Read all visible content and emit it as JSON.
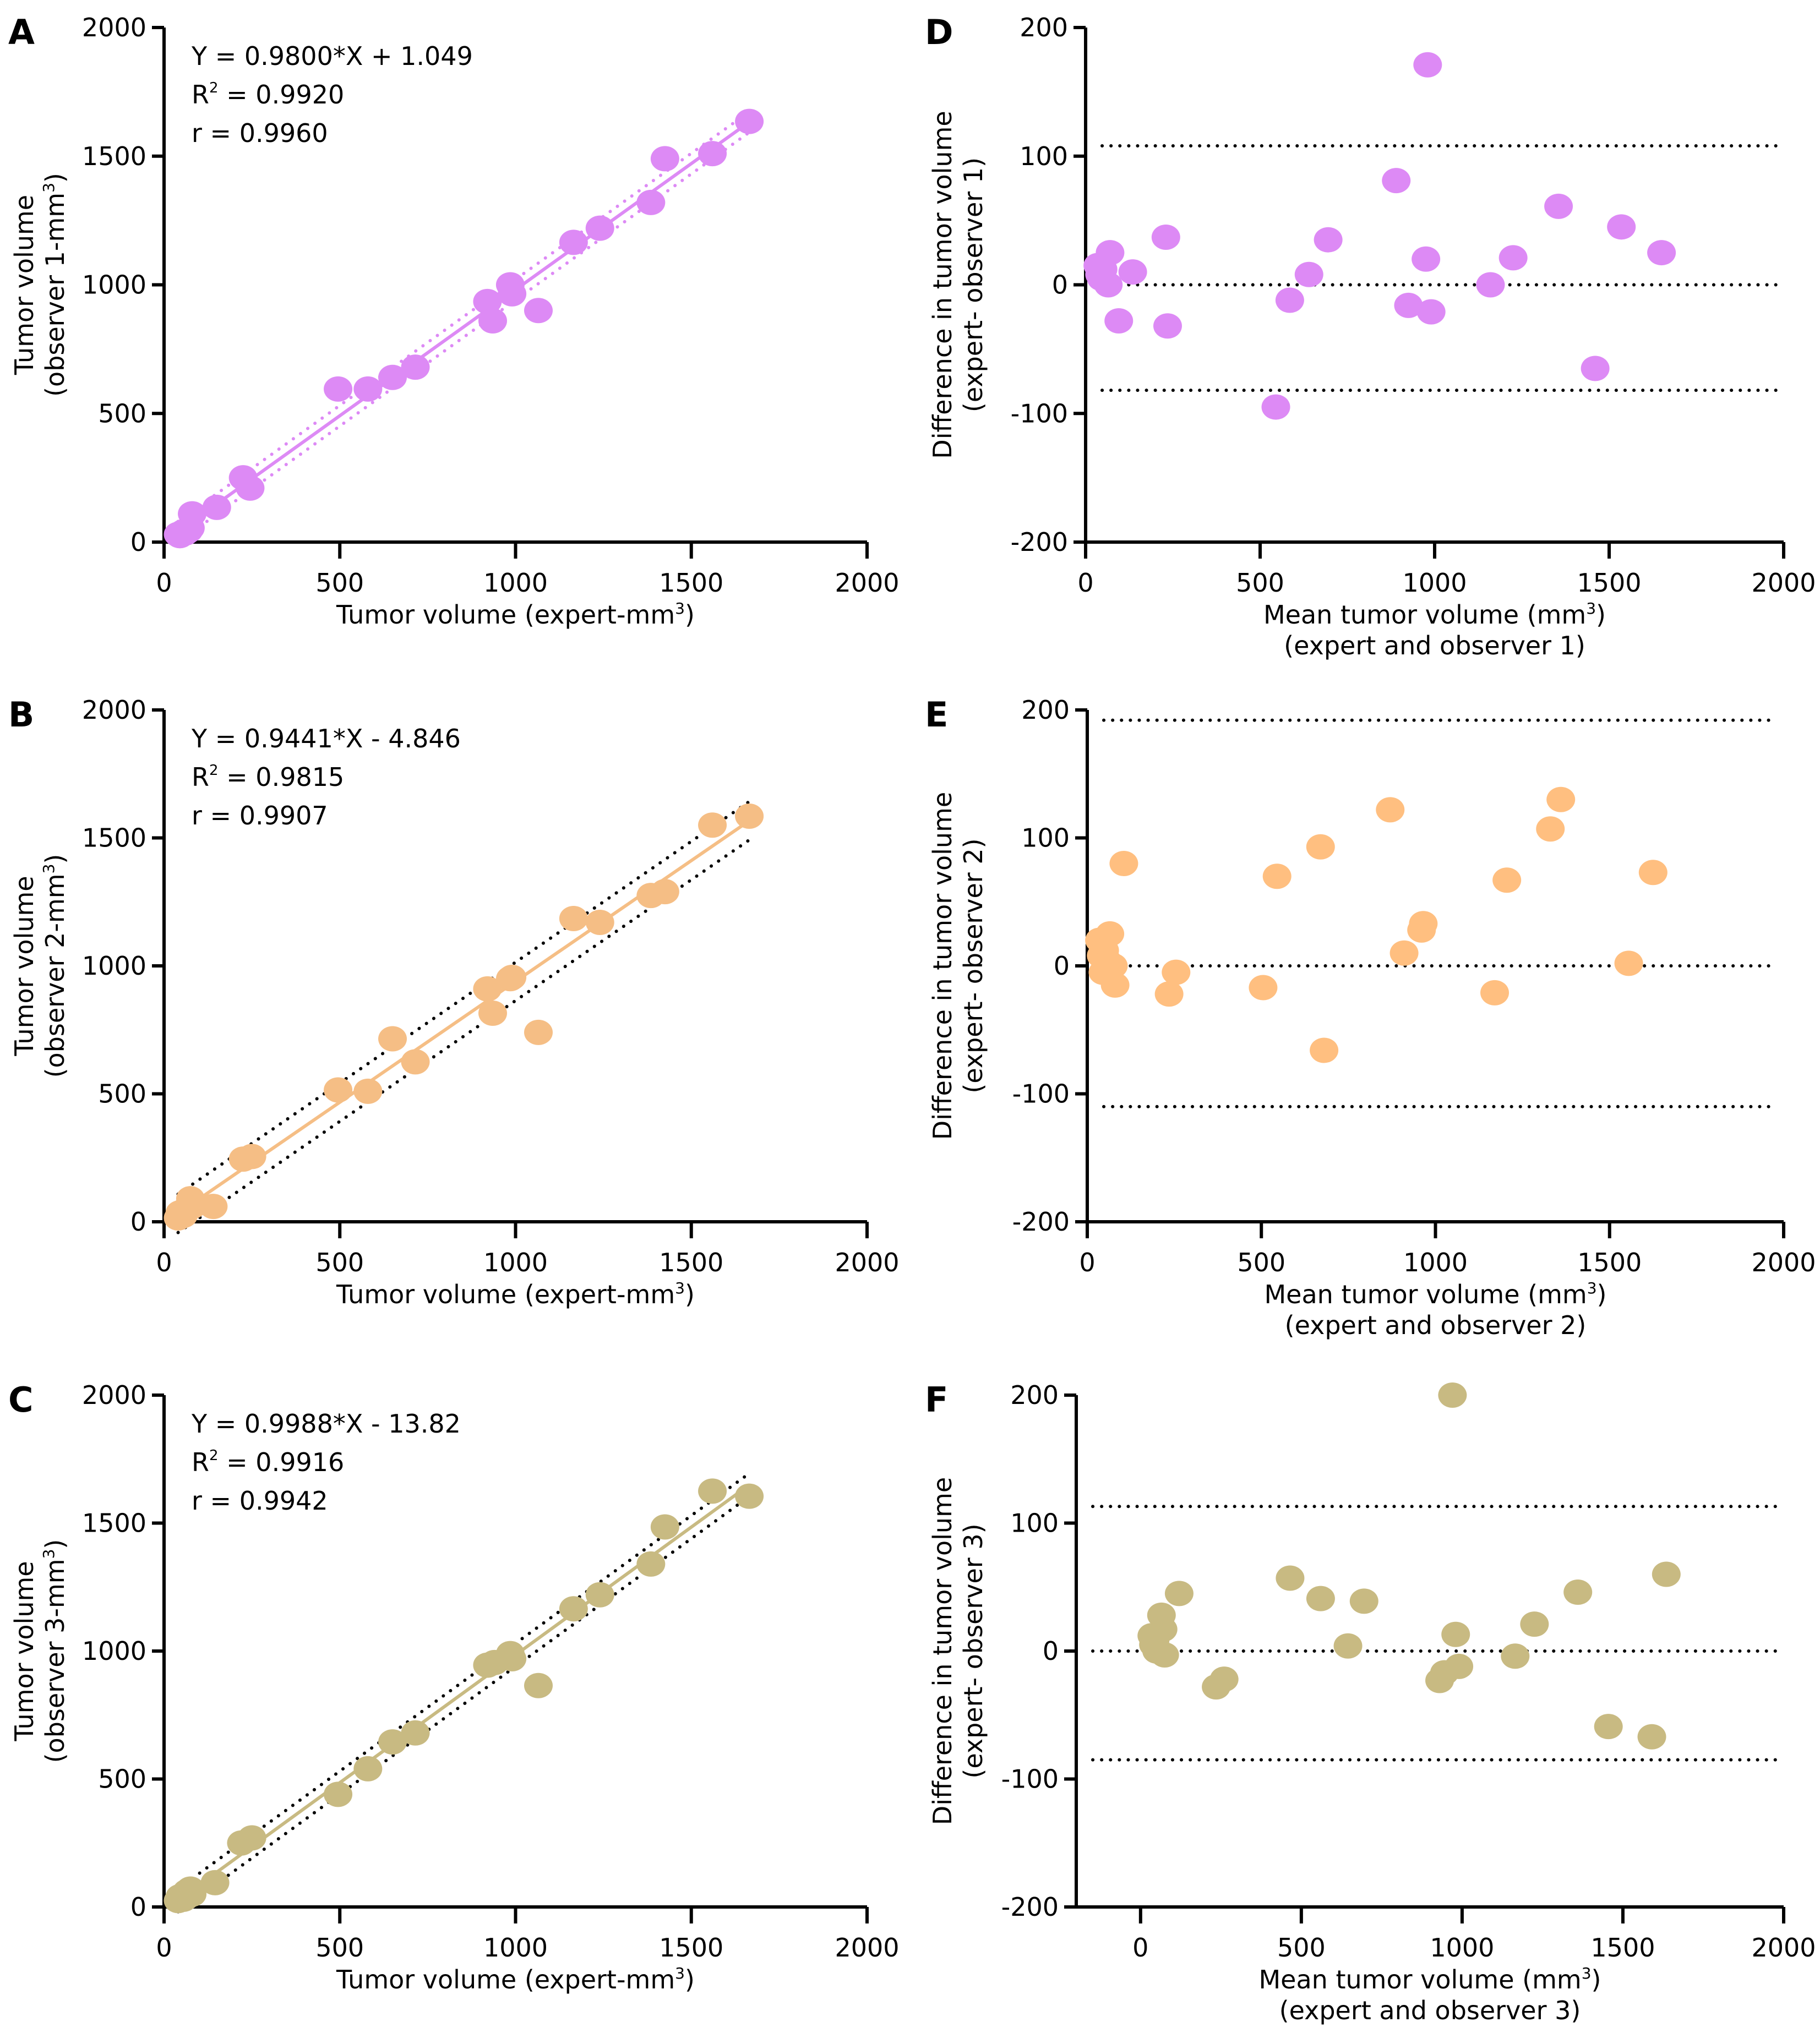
{
  "chart_data": [
    {
      "id": "A",
      "type": "scatter",
      "panel_label": "A",
      "color": "#DD8AF5",
      "ci_color": "#DD8AF5",
      "xlabel": "Tumor volume (expert-mm",
      "xlabel_sup": "3",
      "xlabel_end": ")",
      "ylabel_line1": "Tumor volume",
      "ylabel_line2": "(observer 1-mm",
      "ylabel_sup": "3",
      "ylabel_end": ")",
      "xlim": [
        0,
        2000
      ],
      "ylim": [
        0,
        2000
      ],
      "xticks": [
        0,
        500,
        1000,
        1500,
        2000
      ],
      "yticks": [
        0,
        500,
        1000,
        1500,
        2000
      ],
      "annotations": [
        "Y = 0.9800*X + 1.049",
        "R",
        "= 0.9920",
        "r = 0.9960"
      ],
      "regression": {
        "slope": 0.98,
        "intercept": 1.049,
        "x_range": [
          40,
          1665
        ],
        "ci_offset": 40
      },
      "points": [
        [
          45,
          25
        ],
        [
          55,
          40
        ],
        [
          75,
          55
        ],
        [
          80,
          110
        ],
        [
          150,
          135
        ],
        [
          225,
          250
        ],
        [
          245,
          210
        ],
        [
          495,
          595
        ],
        [
          580,
          595
        ],
        [
          650,
          640
        ],
        [
          715,
          680
        ],
        [
          920,
          935
        ],
        [
          935,
          860
        ],
        [
          985,
          1000
        ],
        [
          990,
          965
        ],
        [
          1065,
          900
        ],
        [
          1165,
          1165
        ],
        [
          1240,
          1220
        ],
        [
          1385,
          1320
        ],
        [
          1425,
          1490
        ],
        [
          1560,
          1510
        ],
        [
          1665,
          1635
        ],
        [
          40,
          30
        ],
        [
          70,
          45
        ],
        [
          60,
          35
        ]
      ]
    },
    {
      "id": "D",
      "type": "scatter",
      "panel_label": "D",
      "color": "#DD8AF5",
      "xlabel": "Mean tumor volume (mm",
      "xlabel_sup": "3",
      "xlabel_end": ")",
      "xlabel_line2": "(expert and observer 1)",
      "ylabel_line1": "Difference in tumor volume",
      "ylabel_line2": "(expert- observer 1)",
      "xlim": [
        0,
        2000
      ],
      "ylim": [
        -200,
        200
      ],
      "xticks": [
        0,
        500,
        1000,
        1500,
        2000
      ],
      "yticks": [
        -200,
        -100,
        0,
        100,
        200
      ],
      "ref_lines": [
        108,
        0,
        -82
      ],
      "points": [
        [
          35,
          15
        ],
        [
          45,
          5
        ],
        [
          50,
          12
        ],
        [
          65,
          0
        ],
        [
          70,
          25
        ],
        [
          95,
          -28
        ],
        [
          135,
          10
        ],
        [
          230,
          37
        ],
        [
          235,
          -32
        ],
        [
          545,
          -95
        ],
        [
          585,
          -12
        ],
        [
          640,
          8
        ],
        [
          695,
          35
        ],
        [
          890,
          81
        ],
        [
          925,
          -16
        ],
        [
          975,
          20
        ],
        [
          980,
          171
        ],
        [
          990,
          -21
        ],
        [
          1160,
          0
        ],
        [
          1225,
          21
        ],
        [
          1355,
          61
        ],
        [
          1460,
          -65
        ],
        [
          1535,
          45
        ],
        [
          1650,
          25
        ],
        [
          40,
          8
        ]
      ]
    },
    {
      "id": "B",
      "type": "scatter",
      "panel_label": "B",
      "color": "#F5BE85",
      "ci_color": "#000000",
      "xlabel": "Tumor volume (expert-mm",
      "xlabel_sup": "3",
      "xlabel_end": ")",
      "ylabel_line1": "Tumor volume",
      "ylabel_line2": "(observer 2-mm",
      "ylabel_sup": "3",
      "ylabel_end": ")",
      "xlim": [
        0,
        2000
      ],
      "ylim": [
        0,
        2000
      ],
      "xticks": [
        0,
        500,
        1000,
        1500,
        2000
      ],
      "yticks": [
        0,
        500,
        1000,
        1500,
        2000
      ],
      "annotations": [
        "Y = 0.9441*X - 4.846",
        "R",
        "= 0.9815",
        "r = 0.9907"
      ],
      "regression": {
        "slope": 0.9441,
        "intercept": -4.846,
        "x_range": [
          40,
          1665
        ],
        "ci_offset": 75
      },
      "points": [
        [
          40,
          15
        ],
        [
          45,
          35
        ],
        [
          55,
          25
        ],
        [
          75,
          90
        ],
        [
          80,
          60
        ],
        [
          140,
          60
        ],
        [
          225,
          245
        ],
        [
          250,
          255
        ],
        [
          495,
          515
        ],
        [
          580,
          510
        ],
        [
          650,
          715
        ],
        [
          715,
          625
        ],
        [
          920,
          910
        ],
        [
          935,
          815
        ],
        [
          985,
          950
        ],
        [
          990,
          955
        ],
        [
          1065,
          740
        ],
        [
          1165,
          1185
        ],
        [
          1240,
          1170
        ],
        [
          1385,
          1275
        ],
        [
          1425,
          1290
        ],
        [
          1560,
          1550
        ],
        [
          1665,
          1585
        ],
        [
          60,
          45
        ],
        [
          70,
          55
        ]
      ]
    },
    {
      "id": "E",
      "type": "scatter",
      "panel_label": "E",
      "color": "#FFBF80",
      "xlabel": "Mean tumor volume (mm",
      "xlabel_sup": "3",
      "xlabel_end": ")",
      "xlabel_line2": "(expert and observer 2)",
      "ylabel_line1": "Difference in tumor volume",
      "ylabel_line2": "(expert- observer 2)",
      "xlim": [
        0,
        2000
      ],
      "ylim": [
        -200,
        200
      ],
      "xticks": [
        0,
        500,
        1000,
        1500,
        2000
      ],
      "yticks": [
        -200,
        -100,
        0,
        100,
        200
      ],
      "ref_lines": [
        192,
        0,
        -110
      ],
      "points": [
        [
          35,
          20
        ],
        [
          40,
          8
        ],
        [
          45,
          -5
        ],
        [
          65,
          25
        ],
        [
          75,
          0
        ],
        [
          80,
          -15
        ],
        [
          105,
          80
        ],
        [
          235,
          -22
        ],
        [
          255,
          -5
        ],
        [
          505,
          -17
        ],
        [
          545,
          70
        ],
        [
          670,
          93
        ],
        [
          680,
          -66
        ],
        [
          870,
          122
        ],
        [
          910,
          10
        ],
        [
          960,
          28
        ],
        [
          965,
          33
        ],
        [
          1170,
          -21
        ],
        [
          1205,
          67
        ],
        [
          1330,
          107
        ],
        [
          1360,
          130
        ],
        [
          1555,
          2
        ],
        [
          1625,
          73
        ],
        [
          50,
          12
        ],
        [
          60,
          3
        ]
      ]
    },
    {
      "id": "C",
      "type": "scatter",
      "panel_label": "C",
      "color": "#C8BA82",
      "ci_color": "#000000",
      "xlabel": "Tumor volume (expert-mm",
      "xlabel_sup": "3",
      "xlabel_end": ")",
      "ylabel_line1": "Tumor volume",
      "ylabel_line2": "(observer 3-mm",
      "ylabel_sup": "3",
      "ylabel_end": ")",
      "xlim": [
        0,
        2000
      ],
      "ylim": [
        0,
        2000
      ],
      "xticks": [
        0,
        500,
        1000,
        1500,
        2000
      ],
      "yticks": [
        0,
        500,
        1000,
        1500,
        2000
      ],
      "annotations": [
        "Y = 0.9988*X - 13.82",
        "R",
        "= 0.9916",
        "r = 0.9942"
      ],
      "regression": {
        "slope": 0.9988,
        "intercept": -13.82,
        "x_range": [
          40,
          1665
        ],
        "ci_offset": 45
      },
      "points": [
        [
          40,
          25
        ],
        [
          45,
          40
        ],
        [
          55,
          30
        ],
        [
          75,
          70
        ],
        [
          80,
          50
        ],
        [
          145,
          95
        ],
        [
          220,
          250
        ],
        [
          250,
          270
        ],
        [
          495,
          440
        ],
        [
          580,
          540
        ],
        [
          650,
          645
        ],
        [
          715,
          680
        ],
        [
          920,
          945
        ],
        [
          940,
          955
        ],
        [
          985,
          990
        ],
        [
          990,
          970
        ],
        [
          1065,
          865
        ],
        [
          1165,
          1165
        ],
        [
          1240,
          1220
        ],
        [
          1385,
          1340
        ],
        [
          1425,
          1485
        ],
        [
          1560,
          1625
        ],
        [
          1665,
          1605
        ],
        [
          65,
          60
        ],
        [
          60,
          35
        ]
      ]
    },
    {
      "id": "F",
      "type": "scatter",
      "panel_label": "F",
      "color": "#C8BA82",
      "xlabel": "Mean tumor volume (mm",
      "xlabel_sup": "3",
      "xlabel_end": ")",
      "xlabel_line2": "(expert and observer 3)",
      "ylabel_line1": "Difference in tumor volume",
      "ylabel_line2": "(expert- observer 3)",
      "xlim": [
        -200,
        2000
      ],
      "ylim": [
        -200,
        200
      ],
      "xticks": [
        0,
        500,
        1000,
        1500,
        2000
      ],
      "yticks": [
        -200,
        -100,
        0,
        100,
        200
      ],
      "ref_lines": [
        113,
        0,
        -85
      ],
      "points": [
        [
          35,
          12
        ],
        [
          40,
          5
        ],
        [
          50,
          0
        ],
        [
          65,
          28
        ],
        [
          70,
          17
        ],
        [
          75,
          -3
        ],
        [
          120,
          45
        ],
        [
          235,
          -28
        ],
        [
          260,
          -22
        ],
        [
          465,
          57
        ],
        [
          560,
          41
        ],
        [
          645,
          4
        ],
        [
          695,
          39
        ],
        [
          930,
          -23
        ],
        [
          945,
          -17
        ],
        [
          970,
          200
        ],
        [
          980,
          13
        ],
        [
          990,
          -12
        ],
        [
          1165,
          -4
        ],
        [
          1225,
          21
        ],
        [
          1360,
          46
        ],
        [
          1455,
          -59
        ],
        [
          1590,
          -67
        ],
        [
          1635,
          60
        ],
        [
          45,
          8
        ]
      ]
    }
  ]
}
